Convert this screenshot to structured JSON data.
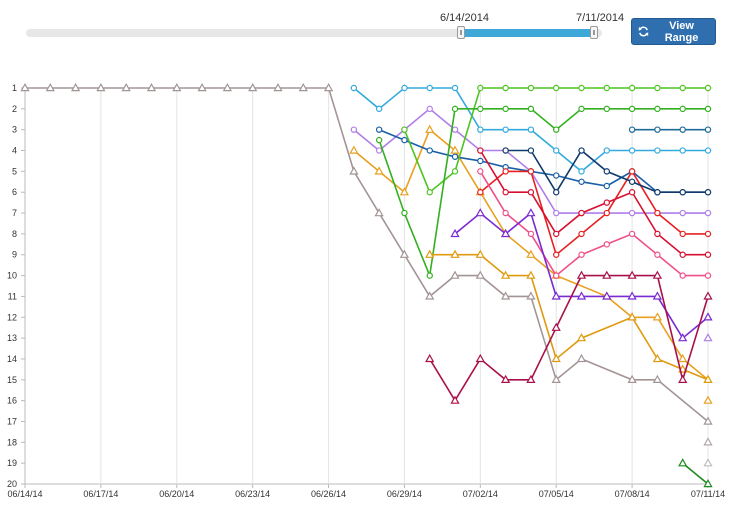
{
  "range": {
    "start_label": "6/14/2014",
    "end_label": "7/11/2014",
    "button_label": "View Range"
  },
  "chart_data": {
    "type": "line",
    "title": "",
    "xlabel": "",
    "ylabel": "",
    "y_inverted": true,
    "ylim": [
      1,
      20
    ],
    "y_ticks": [
      1,
      2,
      3,
      4,
      5,
      6,
      7,
      8,
      9,
      10,
      11,
      12,
      13,
      14,
      15,
      16,
      17,
      18,
      19,
      20
    ],
    "x_tick_labels": [
      "06/14/14",
      "06/17/14",
      "06/20/14",
      "06/23/14",
      "06/26/14",
      "06/29/14",
      "07/02/14",
      "07/05/14",
      "07/08/14",
      "07/11/14"
    ],
    "x_tick_days": [
      0,
      3,
      6,
      9,
      12,
      15,
      18,
      21,
      24,
      27
    ],
    "series": [
      {
        "name": "gray",
        "color": "#a39595",
        "marker": "triangle",
        "points": [
          [
            0,
            1
          ],
          [
            1,
            1
          ],
          [
            2,
            1
          ],
          [
            3,
            1
          ],
          [
            4,
            1
          ],
          [
            5,
            1
          ],
          [
            6,
            1
          ],
          [
            7,
            1
          ],
          [
            8,
            1
          ],
          [
            9,
            1
          ],
          [
            10,
            1
          ],
          [
            11,
            1
          ],
          [
            12,
            1
          ],
          [
            13,
            5
          ],
          [
            14,
            7
          ],
          [
            15,
            9
          ],
          [
            16,
            11
          ],
          [
            17,
            10
          ],
          [
            18,
            10
          ],
          [
            19,
            11
          ],
          [
            20,
            11
          ],
          [
            21,
            15
          ],
          [
            22,
            14
          ],
          [
            24,
            15
          ],
          [
            25,
            15
          ],
          [
            27,
            17
          ]
        ]
      },
      {
        "name": "light-blue",
        "color": "#33aadd",
        "marker": "circle",
        "points": [
          [
            13,
            1
          ],
          [
            14,
            2
          ],
          [
            15,
            1
          ],
          [
            16,
            1
          ],
          [
            17,
            1
          ],
          [
            18,
            3
          ],
          [
            19,
            3
          ],
          [
            20,
            3
          ],
          [
            21,
            4
          ],
          [
            22,
            5
          ],
          [
            23,
            4
          ],
          [
            24,
            4
          ],
          [
            25,
            4
          ],
          [
            26,
            4
          ],
          [
            27,
            4
          ]
        ]
      },
      {
        "name": "purple-light",
        "color": "#b07ee8",
        "marker": "circle",
        "points": [
          [
            13,
            3
          ],
          [
            14,
            4
          ],
          [
            15,
            3
          ],
          [
            16,
            2
          ],
          [
            17,
            3
          ],
          [
            18,
            4
          ],
          [
            19,
            4
          ],
          [
            20,
            5
          ],
          [
            21,
            7
          ],
          [
            22,
            7
          ],
          [
            24,
            7
          ],
          [
            25,
            7
          ],
          [
            26,
            7
          ],
          [
            27,
            7
          ]
        ]
      },
      {
        "name": "orange",
        "color": "#e8a020",
        "marker": "triangle",
        "points": [
          [
            13,
            4
          ],
          [
            14,
            5
          ],
          [
            15,
            6
          ],
          [
            16,
            3
          ],
          [
            17,
            4
          ],
          [
            18,
            6
          ],
          [
            19,
            8
          ],
          [
            20,
            9
          ],
          [
            21,
            10
          ],
          [
            23,
            11
          ],
          [
            24,
            12
          ],
          [
            25,
            12
          ],
          [
            26,
            14
          ],
          [
            27,
            15
          ]
        ]
      },
      {
        "name": "dark-blue",
        "color": "#1a5fa8",
        "marker": "circle",
        "points": [
          [
            14,
            3
          ],
          [
            15,
            3.5
          ],
          [
            16,
            4
          ],
          [
            17,
            4.3
          ],
          [
            18,
            4.5
          ],
          [
            19,
            4.8
          ],
          [
            20,
            5
          ],
          [
            21,
            5.2
          ],
          [
            22,
            5.5
          ],
          [
            23,
            5.7
          ],
          [
            24,
            5
          ],
          [
            25,
            6
          ],
          [
            26,
            6
          ],
          [
            27,
            6
          ]
        ]
      },
      {
        "name": "green",
        "color": "#4cc520",
        "marker": "circle",
        "points": [
          [
            15,
            3
          ],
          [
            16,
            6
          ],
          [
            17,
            5
          ],
          [
            18,
            1
          ],
          [
            19,
            1
          ],
          [
            20,
            1
          ],
          [
            21,
            1
          ],
          [
            22,
            1
          ],
          [
            23,
            1
          ],
          [
            24,
            1
          ],
          [
            25,
            1
          ],
          [
            26,
            1
          ],
          [
            27,
            1
          ]
        ]
      },
      {
        "name": "green-2",
        "color": "#33b020",
        "marker": "circle",
        "points": [
          [
            14,
            3.5
          ],
          [
            15,
            7
          ],
          [
            16,
            10
          ],
          [
            17,
            2
          ],
          [
            18,
            2
          ],
          [
            19,
            2
          ],
          [
            20,
            2
          ],
          [
            21,
            3
          ],
          [
            22,
            2
          ],
          [
            23,
            2
          ],
          [
            24,
            2
          ],
          [
            25,
            2
          ],
          [
            26,
            2
          ],
          [
            27,
            2
          ]
        ]
      },
      {
        "name": "orange-2",
        "color": "#e09a10",
        "marker": "triangle",
        "points": [
          [
            16,
            9
          ],
          [
            17,
            9
          ],
          [
            18,
            9
          ],
          [
            19,
            10
          ],
          [
            20,
            10
          ],
          [
            21,
            14
          ],
          [
            22,
            13
          ],
          [
            24,
            12
          ],
          [
            25,
            14
          ],
          [
            26,
            14.5
          ],
          [
            27,
            15
          ]
        ]
      },
      {
        "name": "teal-navy",
        "color": "#1d6b9a",
        "marker": "circle",
        "points": [
          [
            24,
            3
          ],
          [
            25,
            3
          ],
          [
            26,
            3
          ],
          [
            27,
            3
          ]
        ]
      },
      {
        "name": "red",
        "color": "#e82020",
        "marker": "circle",
        "points": [
          [
            18,
            6
          ],
          [
            19,
            5
          ],
          [
            20,
            5
          ],
          [
            21,
            9
          ],
          [
            22,
            8
          ],
          [
            23,
            7
          ],
          [
            24,
            5
          ],
          [
            25,
            7
          ],
          [
            26,
            8
          ],
          [
            27,
            8
          ]
        ]
      },
      {
        "name": "red-2",
        "color": "#d81030",
        "marker": "circle",
        "points": [
          [
            18,
            4
          ],
          [
            19,
            6
          ],
          [
            20,
            6
          ],
          [
            21,
            8
          ],
          [
            22,
            7
          ],
          [
            23,
            6.5
          ],
          [
            24,
            6
          ],
          [
            25,
            8
          ],
          [
            26,
            9
          ],
          [
            27,
            9
          ]
        ]
      },
      {
        "name": "navy",
        "color": "#0f3a6b",
        "marker": "circle",
        "points": [
          [
            19,
            4
          ],
          [
            20,
            4
          ],
          [
            21,
            6
          ],
          [
            22,
            4
          ],
          [
            23,
            5
          ],
          [
            24,
            5.5
          ],
          [
            25,
            6
          ],
          [
            26,
            6
          ],
          [
            27,
            6
          ]
        ]
      },
      {
        "name": "pink",
        "color": "#f0508a",
        "marker": "circle",
        "points": [
          [
            18,
            5
          ],
          [
            19,
            7
          ],
          [
            20,
            8
          ],
          [
            21,
            10
          ],
          [
            22,
            9
          ],
          [
            23,
            8.5
          ],
          [
            24,
            8
          ],
          [
            25,
            9
          ],
          [
            26,
            10
          ],
          [
            27,
            10
          ]
        ]
      },
      {
        "name": "violet",
        "color": "#7a2ad0",
        "marker": "triangle",
        "points": [
          [
            17,
            8
          ],
          [
            18,
            7
          ],
          [
            19,
            8
          ],
          [
            20,
            7
          ],
          [
            21,
            11
          ],
          [
            22,
            11
          ],
          [
            23,
            11
          ],
          [
            24,
            11
          ],
          [
            25,
            11
          ],
          [
            26,
            13
          ],
          [
            27,
            12
          ]
        ]
      },
      {
        "name": "maroon",
        "color": "#a8104a",
        "marker": "triangle",
        "points": [
          [
            16,
            14
          ],
          [
            17,
            16
          ],
          [
            18,
            14
          ],
          [
            19,
            15
          ],
          [
            20,
            15
          ],
          [
            21,
            12.5
          ],
          [
            22,
            10
          ],
          [
            23,
            10
          ],
          [
            24,
            10
          ],
          [
            25,
            10
          ],
          [
            26,
            15
          ],
          [
            27,
            11
          ]
        ]
      },
      {
        "name": "dark-green",
        "color": "#1f8a1f",
        "marker": "triangle",
        "points": [
          [
            26,
            19
          ],
          [
            27,
            20
          ]
        ]
      },
      {
        "name": "lilac-single",
        "color": "#b07ee8",
        "marker": "triangle",
        "points": [
          [
            27,
            13
          ]
        ]
      },
      {
        "name": "orange-single",
        "color": "#e8a020",
        "marker": "triangle",
        "points": [
          [
            27,
            16
          ]
        ]
      },
      {
        "name": "gray-single",
        "color": "#b0a8a8",
        "marker": "triangle",
        "points": [
          [
            27,
            18
          ]
        ]
      },
      {
        "name": "gray-single-2",
        "color": "#c4bcbc",
        "marker": "triangle",
        "points": [
          [
            27,
            19
          ]
        ]
      }
    ]
  }
}
